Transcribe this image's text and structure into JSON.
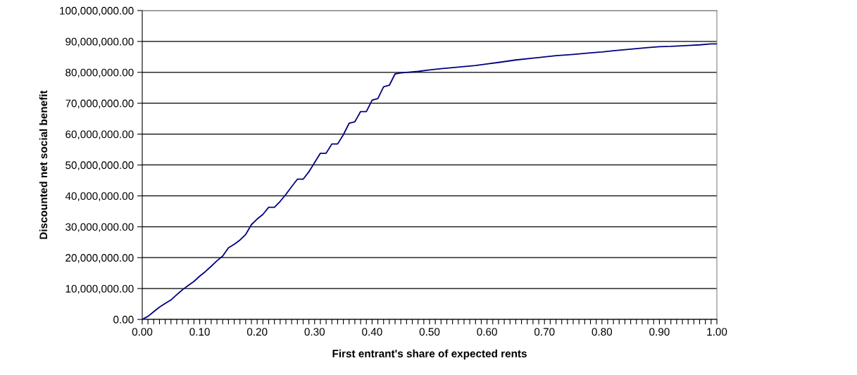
{
  "chart_data": {
    "type": "line",
    "xlabel": "First entrant's share of expected rents",
    "ylabel": "Discounted net social benefit",
    "x": [
      0.0,
      0.01,
      0.02,
      0.03,
      0.04,
      0.05,
      0.06,
      0.07,
      0.08,
      0.09,
      0.1,
      0.11,
      0.12,
      0.13,
      0.14,
      0.15,
      0.16,
      0.17,
      0.18,
      0.19,
      0.2,
      0.21,
      0.22,
      0.23,
      0.24,
      0.25,
      0.26,
      0.27,
      0.28,
      0.29,
      0.3,
      0.31,
      0.32,
      0.33,
      0.34,
      0.35,
      0.36,
      0.37,
      0.38,
      0.39,
      0.4,
      0.41,
      0.42,
      0.43,
      0.44,
      0.45,
      0.46,
      0.48,
      0.5,
      0.52,
      0.55,
      0.58,
      0.6,
      0.62,
      0.65,
      0.68,
      0.7,
      0.72,
      0.75,
      0.78,
      0.8,
      0.82,
      0.85,
      0.88,
      0.9,
      0.92,
      0.95,
      0.97,
      0.99,
      1.0
    ],
    "series": [
      {
        "color": "#000080",
        "values": [
          0,
          1000000,
          2500000,
          4000000,
          5200000,
          6300000,
          8000000,
          9600000,
          11000000,
          12300000,
          14000000,
          15500000,
          17200000,
          19000000,
          20500000,
          23200000,
          24300000,
          25700000,
          27500000,
          30700000,
          32500000,
          34000000,
          36300000,
          36300000,
          38200000,
          40500000,
          43000000,
          45400000,
          45400000,
          47800000,
          50800000,
          53800000,
          53800000,
          56800000,
          56800000,
          59800000,
          63500000,
          64000000,
          67300000,
          67300000,
          71000000,
          71500000,
          75300000,
          75800000,
          79500000,
          79800000,
          80000000,
          80300000,
          80800000,
          81200000,
          81700000,
          82200000,
          82700000,
          83200000,
          84000000,
          84600000,
          85000000,
          85400000,
          85800000,
          86300000,
          86600000,
          87000000,
          87500000,
          88000000,
          88300000,
          88400000,
          88700000,
          88900000,
          89200000,
          89200000
        ]
      }
    ],
    "xlim": [
      0,
      1.0
    ],
    "xticks": [
      {
        "value": 0,
        "label": "0.00"
      },
      {
        "value": 0.01,
        "label": null
      },
      {
        "value": 0.02,
        "label": null
      },
      {
        "value": 0.03,
        "label": null
      },
      {
        "value": 0.04,
        "label": null
      },
      {
        "value": 0.05,
        "label": null
      },
      {
        "value": 0.06,
        "label": null
      },
      {
        "value": 0.07,
        "label": null
      },
      {
        "value": 0.08,
        "label": null
      },
      {
        "value": 0.09,
        "label": null
      },
      {
        "value": 0.1,
        "label": "0.10"
      },
      {
        "value": 0.11,
        "label": null
      },
      {
        "value": 0.12,
        "label": null
      },
      {
        "value": 0.13,
        "label": null
      },
      {
        "value": 0.14,
        "label": null
      },
      {
        "value": 0.15,
        "label": null
      },
      {
        "value": 0.16,
        "label": null
      },
      {
        "value": 0.17,
        "label": null
      },
      {
        "value": 0.18,
        "label": null
      },
      {
        "value": 0.19,
        "label": null
      },
      {
        "value": 0.2,
        "label": "0.20"
      },
      {
        "value": 0.21,
        "label": null
      },
      {
        "value": 0.22,
        "label": null
      },
      {
        "value": 0.23,
        "label": null
      },
      {
        "value": 0.24,
        "label": null
      },
      {
        "value": 0.25,
        "label": null
      },
      {
        "value": 0.26,
        "label": null
      },
      {
        "value": 0.27,
        "label": null
      },
      {
        "value": 0.28,
        "label": null
      },
      {
        "value": 0.29,
        "label": null
      },
      {
        "value": 0.3,
        "label": "0.30"
      },
      {
        "value": 0.31,
        "label": null
      },
      {
        "value": 0.32,
        "label": null
      },
      {
        "value": 0.33,
        "label": null
      },
      {
        "value": 0.34,
        "label": null
      },
      {
        "value": 0.35,
        "label": null
      },
      {
        "value": 0.36,
        "label": null
      },
      {
        "value": 0.37,
        "label": null
      },
      {
        "value": 0.38,
        "label": null
      },
      {
        "value": 0.39,
        "label": null
      },
      {
        "value": 0.4,
        "label": "0.40"
      },
      {
        "value": 0.41,
        "label": null
      },
      {
        "value": 0.42,
        "label": null
      },
      {
        "value": 0.43,
        "label": null
      },
      {
        "value": 0.44,
        "label": null
      },
      {
        "value": 0.45,
        "label": null
      },
      {
        "value": 0.46,
        "label": null
      },
      {
        "value": 0.47,
        "label": null
      },
      {
        "value": 0.48,
        "label": null
      },
      {
        "value": 0.49,
        "label": null
      },
      {
        "value": 0.5,
        "label": "0.50"
      },
      {
        "value": 0.51,
        "label": null
      },
      {
        "value": 0.52,
        "label": null
      },
      {
        "value": 0.53,
        "label": null
      },
      {
        "value": 0.54,
        "label": null
      },
      {
        "value": 0.55,
        "label": null
      },
      {
        "value": 0.56,
        "label": null
      },
      {
        "value": 0.57,
        "label": null
      },
      {
        "value": 0.58,
        "label": null
      },
      {
        "value": 0.59,
        "label": null
      },
      {
        "value": 0.6,
        "label": "0.60"
      },
      {
        "value": 0.61,
        "label": null
      },
      {
        "value": 0.62,
        "label": null
      },
      {
        "value": 0.63,
        "label": null
      },
      {
        "value": 0.64,
        "label": null
      },
      {
        "value": 0.65,
        "label": null
      },
      {
        "value": 0.66,
        "label": null
      },
      {
        "value": 0.67,
        "label": null
      },
      {
        "value": 0.68,
        "label": null
      },
      {
        "value": 0.69,
        "label": null
      },
      {
        "value": 0.7,
        "label": "0.70"
      },
      {
        "value": 0.71,
        "label": null
      },
      {
        "value": 0.72,
        "label": null
      },
      {
        "value": 0.73,
        "label": null
      },
      {
        "value": 0.74,
        "label": null
      },
      {
        "value": 0.75,
        "label": null
      },
      {
        "value": 0.76,
        "label": null
      },
      {
        "value": 0.77,
        "label": null
      },
      {
        "value": 0.78,
        "label": null
      },
      {
        "value": 0.79,
        "label": null
      },
      {
        "value": 0.8,
        "label": "0.80"
      },
      {
        "value": 0.81,
        "label": null
      },
      {
        "value": 0.82,
        "label": null
      },
      {
        "value": 0.83,
        "label": null
      },
      {
        "value": 0.84,
        "label": null
      },
      {
        "value": 0.85,
        "label": null
      },
      {
        "value": 0.86,
        "label": null
      },
      {
        "value": 0.87,
        "label": null
      },
      {
        "value": 0.88,
        "label": null
      },
      {
        "value": 0.89,
        "label": null
      },
      {
        "value": 0.9,
        "label": "0.90"
      },
      {
        "value": 0.91,
        "label": null
      },
      {
        "value": 0.92,
        "label": null
      },
      {
        "value": 0.93,
        "label": null
      },
      {
        "value": 0.94,
        "label": null
      },
      {
        "value": 0.95,
        "label": null
      },
      {
        "value": 0.96,
        "label": null
      },
      {
        "value": 0.97,
        "label": null
      },
      {
        "value": 0.98,
        "label": null
      },
      {
        "value": 0.99,
        "label": null
      },
      {
        "value": 1.0,
        "label": "1.00"
      }
    ],
    "ylim": [
      0,
      100000000
    ],
    "yticks": [
      {
        "value": 0,
        "label": "0.00"
      },
      {
        "value": 10000000,
        "label": "10,000,000.00"
      },
      {
        "value": 20000000,
        "label": "20,000,000.00"
      },
      {
        "value": 30000000,
        "label": "30,000,000.00"
      },
      {
        "value": 40000000,
        "label": "40,000,000.00"
      },
      {
        "value": 50000000,
        "label": "50,000,000.00"
      },
      {
        "value": 60000000,
        "label": "60,000,000.00"
      },
      {
        "value": 70000000,
        "label": "70,000,000.00"
      },
      {
        "value": 80000000,
        "label": "80,000,000.00"
      },
      {
        "value": 90000000,
        "label": "90,000,000.00"
      },
      {
        "value": 100000000,
        "label": "100,000,000.00"
      }
    ],
    "grid": "y",
    "marker": "none",
    "line_style": "solid"
  }
}
